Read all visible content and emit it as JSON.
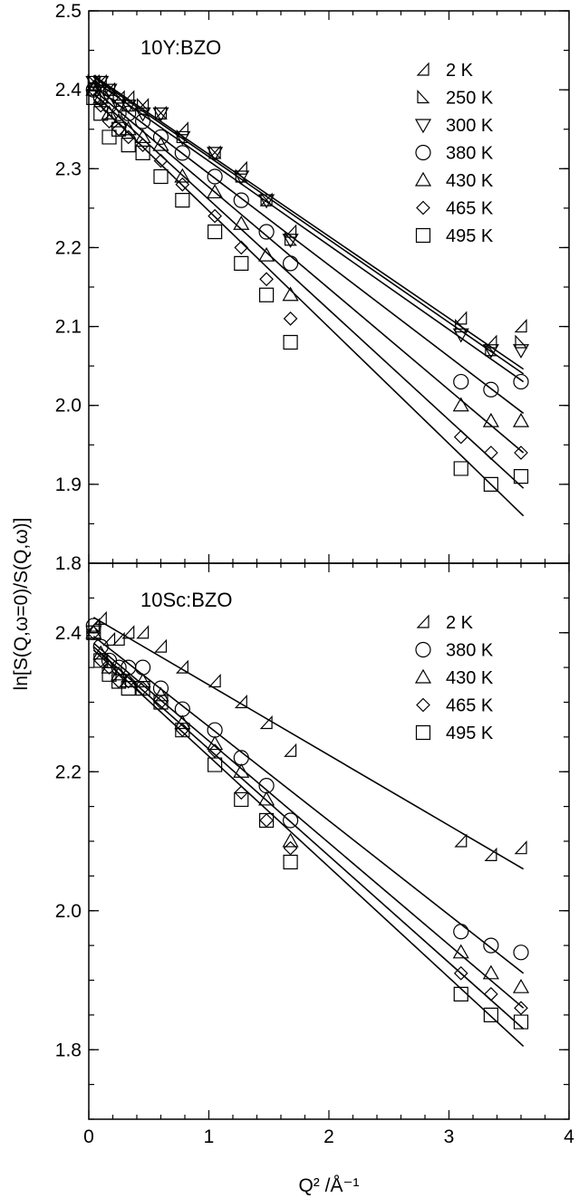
{
  "ylabel": "ln[S(Q,ω=0)/S(Q,ω)]",
  "xlabel": "Q² /Å⁻¹",
  "chart_data": [
    {
      "type": "scatter",
      "title": "10Y:BZO",
      "xlim": [
        0,
        4
      ],
      "ylim": [
        1.8,
        2.5
      ],
      "x_ticks": [
        "0",
        "1",
        "2",
        "3",
        "4"
      ],
      "y_ticks": [
        "1.8",
        "1.9",
        "2.0",
        "2.1",
        "2.2",
        "2.3",
        "2.4",
        "2.5"
      ],
      "legend_position": "top-right",
      "series": [
        {
          "name": "2 K",
          "marker": "tri-left",
          "x": [
            0.04,
            0.1,
            0.17,
            0.25,
            0.33,
            0.45,
            0.6,
            0.78,
            1.05,
            1.27,
            1.48,
            1.68,
            3.1,
            3.35,
            3.6
          ],
          "y": [
            2.41,
            2.41,
            2.4,
            2.39,
            2.39,
            2.38,
            2.37,
            2.35,
            2.32,
            2.3,
            2.26,
            2.22,
            2.11,
            2.08,
            2.1
          ],
          "fit": [
            2.418,
            2.046
          ]
        },
        {
          "name": "250 K",
          "marker": "tri-right",
          "x": [
            0.04,
            0.1,
            0.17,
            0.25,
            0.33,
            0.45,
            0.6,
            0.78,
            1.05,
            1.27,
            1.48,
            1.68,
            3.1,
            3.35,
            3.6
          ],
          "y": [
            2.41,
            2.41,
            2.4,
            2.39,
            2.38,
            2.38,
            2.37,
            2.34,
            2.32,
            2.29,
            2.26,
            2.21,
            2.1,
            2.07,
            2.08
          ],
          "fit": [
            2.416,
            2.04
          ]
        },
        {
          "name": "300 K",
          "marker": "tri-down",
          "x": [
            0.04,
            0.1,
            0.17,
            0.25,
            0.33,
            0.45,
            0.6,
            0.78,
            1.05,
            1.27,
            1.48,
            1.68,
            3.1,
            3.35,
            3.6
          ],
          "y": [
            2.41,
            2.41,
            2.4,
            2.38,
            2.38,
            2.37,
            2.37,
            2.34,
            2.32,
            2.29,
            2.26,
            2.21,
            2.09,
            2.07,
            2.07
          ],
          "fit": [
            2.412,
            2.03
          ]
        },
        {
          "name": "380 K",
          "marker": "circle",
          "x": [
            0.04,
            0.1,
            0.17,
            0.25,
            0.33,
            0.45,
            0.6,
            0.78,
            1.05,
            1.27,
            1.48,
            1.68,
            3.1,
            3.35,
            3.6
          ],
          "y": [
            2.4,
            2.39,
            2.38,
            2.37,
            2.37,
            2.36,
            2.34,
            2.32,
            2.29,
            2.26,
            2.22,
            2.18,
            2.03,
            2.02,
            2.03
          ],
          "fit": [
            2.405,
            1.99
          ]
        },
        {
          "name": "430 K",
          "marker": "triangle",
          "x": [
            0.04,
            0.1,
            0.17,
            0.25,
            0.33,
            0.45,
            0.6,
            0.78,
            1.05,
            1.27,
            1.48,
            1.68,
            3.1,
            3.35,
            3.6
          ],
          "y": [
            2.4,
            2.39,
            2.37,
            2.36,
            2.35,
            2.34,
            2.33,
            2.29,
            2.27,
            2.23,
            2.19,
            2.14,
            2.0,
            1.98,
            1.98
          ],
          "fit": [
            2.4,
            1.94
          ]
        },
        {
          "name": "465 K",
          "marker": "diamond",
          "x": [
            0.04,
            0.1,
            0.17,
            0.25,
            0.33,
            0.45,
            0.6,
            0.78,
            1.05,
            1.27,
            1.48,
            1.68,
            3.1,
            3.35,
            3.6
          ],
          "y": [
            2.4,
            2.38,
            2.36,
            2.35,
            2.34,
            2.33,
            2.31,
            2.28,
            2.24,
            2.2,
            2.16,
            2.11,
            1.96,
            1.94,
            1.94
          ],
          "fit": [
            2.395,
            1.895
          ]
        },
        {
          "name": "495 K",
          "marker": "square",
          "x": [
            0.04,
            0.1,
            0.17,
            0.25,
            0.33,
            0.45,
            0.6,
            0.78,
            1.05,
            1.27,
            1.48,
            1.68,
            3.1,
            3.35,
            3.6
          ],
          "y": [
            2.39,
            2.37,
            2.34,
            2.35,
            2.33,
            2.32,
            2.29,
            2.26,
            2.22,
            2.18,
            2.14,
            2.08,
            1.92,
            1.9,
            1.91
          ],
          "fit": [
            2.388,
            1.86
          ]
        }
      ]
    },
    {
      "type": "scatter",
      "title": "10Sc:BZO",
      "xlim": [
        0,
        4
      ],
      "ylim": [
        1.7,
        2.5
      ],
      "x_ticks": [
        "0",
        "1",
        "2",
        "3",
        "4"
      ],
      "y_ticks": [
        "1.8",
        "2.0",
        "2.2",
        "2.4"
      ],
      "legend_position": "top-right",
      "series": [
        {
          "name": "2 K",
          "marker": "tri-left",
          "x": [
            0.04,
            0.1,
            0.17,
            0.25,
            0.33,
            0.45,
            0.6,
            0.78,
            1.05,
            1.27,
            1.48,
            1.68,
            3.1,
            3.35,
            3.6
          ],
          "y": [
            2.41,
            2.42,
            2.39,
            2.39,
            2.4,
            2.4,
            2.38,
            2.35,
            2.33,
            2.3,
            2.27,
            2.23,
            2.1,
            2.08,
            2.09
          ],
          "fit": [
            2.422,
            2.06
          ]
        },
        {
          "name": "380 K",
          "marker": "circle",
          "x": [
            0.04,
            0.1,
            0.17,
            0.25,
            0.33,
            0.45,
            0.6,
            0.78,
            1.05,
            1.27,
            1.48,
            1.68,
            3.1,
            3.35,
            3.6
          ],
          "y": [
            2.41,
            2.38,
            2.36,
            2.35,
            2.35,
            2.35,
            2.32,
            2.29,
            2.26,
            2.22,
            2.18,
            2.13,
            1.97,
            1.95,
            1.94
          ],
          "fit": [
            2.395,
            1.91
          ]
        },
        {
          "name": "430 K",
          "marker": "triangle",
          "x": [
            0.04,
            0.1,
            0.17,
            0.25,
            0.33,
            0.45,
            0.6,
            0.78,
            1.05,
            1.27,
            1.48,
            1.68,
            3.1,
            3.35,
            3.6
          ],
          "y": [
            2.4,
            2.37,
            2.35,
            2.34,
            2.33,
            2.33,
            2.31,
            2.27,
            2.24,
            2.2,
            2.16,
            2.1,
            1.94,
            1.91,
            1.89
          ],
          "fit": [
            2.385,
            1.86
          ]
        },
        {
          "name": "465 K",
          "marker": "diamond",
          "x": [
            0.04,
            0.1,
            0.17,
            0.25,
            0.33,
            0.45,
            0.6,
            0.78,
            1.05,
            1.27,
            1.48,
            1.68,
            3.1,
            3.35,
            3.6
          ],
          "y": [
            2.4,
            2.36,
            2.35,
            2.33,
            2.33,
            2.32,
            2.3,
            2.26,
            2.23,
            2.17,
            2.13,
            2.09,
            1.91,
            1.88,
            1.86
          ],
          "fit": [
            2.38,
            1.83
          ]
        },
        {
          "name": "495 K",
          "marker": "square",
          "x": [
            0.04,
            0.1,
            0.17,
            0.25,
            0.33,
            0.45,
            0.6,
            0.78,
            1.05,
            1.27,
            1.48,
            1.68,
            3.1,
            3.35,
            3.6
          ],
          "y": [
            2.4,
            2.36,
            2.34,
            2.33,
            2.32,
            2.32,
            2.3,
            2.26,
            2.21,
            2.16,
            2.13,
            2.07,
            1.88,
            1.85,
            1.84
          ],
          "fit": [
            2.375,
            1.805
          ]
        }
      ]
    }
  ]
}
